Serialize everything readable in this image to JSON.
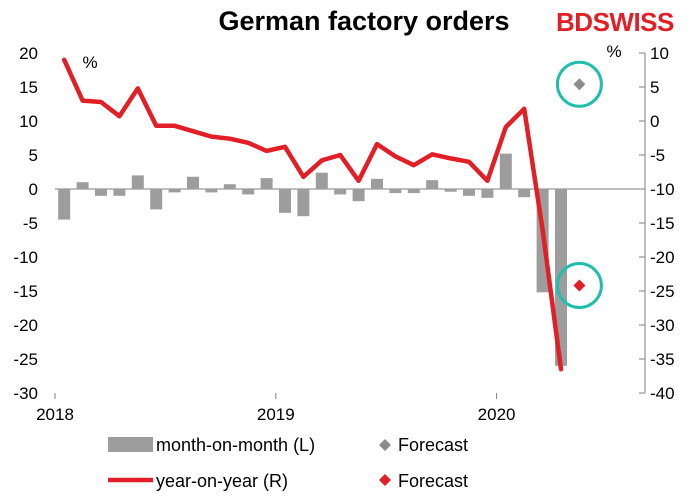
{
  "title": "German factory orders",
  "logo": {
    "part1": "BD",
    "part2": "SWISS",
    "color": "#e21e26"
  },
  "chart_data": {
    "type": "bar+line",
    "title": "German factory orders",
    "left_axis": {
      "unit": "%",
      "ylim": [
        -30,
        20
      ],
      "ticks": [
        20,
        15,
        10,
        5,
        0,
        -5,
        -10,
        -15,
        -20,
        -25,
        -30
      ]
    },
    "right_axis": {
      "unit": "%",
      "ylim": [
        -40,
        10
      ],
      "ticks": [
        10,
        5,
        0,
        -5,
        -10,
        -15,
        -20,
        -25,
        -30,
        -35,
        -40
      ]
    },
    "x_labels": [
      "2018",
      "2019",
      "2020"
    ],
    "months": [
      "2018-01",
      "2018-02",
      "2018-03",
      "2018-04",
      "2018-05",
      "2018-06",
      "2018-07",
      "2018-08",
      "2018-09",
      "2018-10",
      "2018-11",
      "2018-12",
      "2019-01",
      "2019-02",
      "2019-03",
      "2019-04",
      "2019-05",
      "2019-06",
      "2019-07",
      "2019-08",
      "2019-09",
      "2019-10",
      "2019-11",
      "2019-12",
      "2020-01",
      "2020-02",
      "2020-03",
      "2020-04"
    ],
    "series": [
      {
        "name": "month-on-month (L)",
        "type": "bar",
        "axis": "left",
        "color": "#9d9d9d",
        "values": [
          -4.5,
          1.0,
          -1.0,
          -1.0,
          2.0,
          -3.0,
          -0.5,
          1.8,
          -0.5,
          0.7,
          -0.8,
          1.6,
          -3.5,
          -4.0,
          2.4,
          -0.8,
          -1.8,
          1.5,
          -0.6,
          -0.6,
          1.3,
          -0.4,
          -1.0,
          -1.3,
          5.2,
          -1.2,
          -15.2,
          -26.0
        ]
      },
      {
        "name": "year-on-year (R)",
        "type": "line",
        "axis": "right",
        "color": "#e21e26",
        "values": [
          9.0,
          3.0,
          2.8,
          0.7,
          4.8,
          -0.7,
          -0.7,
          -1.5,
          -2.3,
          -2.6,
          -3.2,
          -4.4,
          -3.8,
          -8.2,
          -5.8,
          -5.0,
          -8.8,
          -3.4,
          -5.2,
          -6.5,
          -4.9,
          -5.5,
          -6.0,
          -8.8,
          -0.9,
          1.8,
          -16.0,
          -36.5
        ]
      }
    ],
    "forecasts": [
      {
        "name": "Forecast",
        "axis": "left",
        "month": "2020-05",
        "value": 15.4,
        "color": "#8c8c8c"
      },
      {
        "name": "Forecast",
        "axis": "right",
        "month": "2020-05",
        "value": -24.2,
        "color": "#e21e26"
      }
    ],
    "highlight_color": "#1fbfae"
  },
  "legend": {
    "items": [
      {
        "label": "month-on-month (L)",
        "kind": "bar",
        "color": "#9d9d9d"
      },
      {
        "label": "Forecast",
        "kind": "diamond",
        "color": "#8c8c8c"
      },
      {
        "label": "year-on-year (R)",
        "kind": "line",
        "color": "#e21e26"
      },
      {
        "label": "Forecast",
        "kind": "diamond",
        "color": "#e21e26"
      }
    ]
  }
}
